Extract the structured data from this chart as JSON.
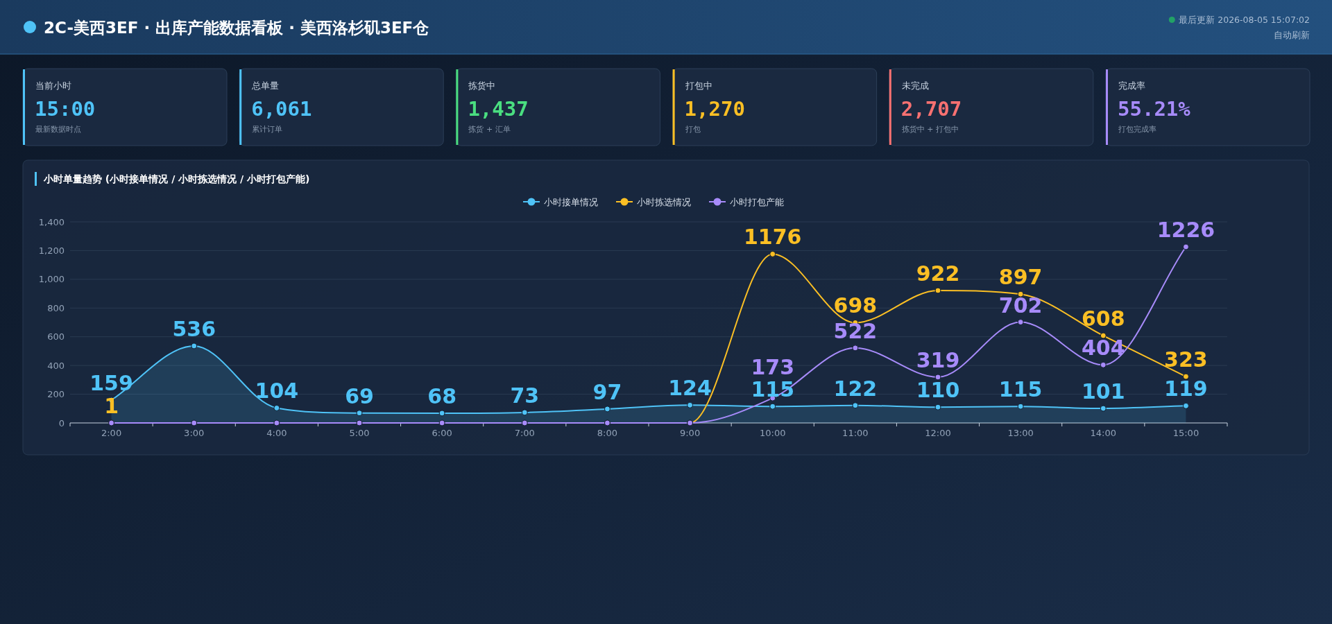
{
  "chart_data": [
    {
      "type": "other",
      "title": "2C-美西3EF · 出库产能数据看板 · 美西洛杉矶3EF仓",
      "annotations": [
        "最后更新 2026-08-05 15:07:02",
        "自动刷新"
      ]
    },
    {
      "type": "other",
      "title": "当前小时",
      "subtitle": "15:00",
      "annotations": [
        "最新数据时点"
      ]
    },
    {
      "type": "other",
      "title": "总单量",
      "subtitle": "6,061",
      "annotations": [
        "累计订单"
      ]
    },
    {
      "type": "other",
      "title": "拣货中",
      "subtitle": "1,437",
      "annotations": [
        "拣货 + 汇单"
      ]
    },
    {
      "type": "other",
      "title": "打包中",
      "subtitle": "1,270",
      "annotations": [
        "打包"
      ]
    },
    {
      "type": "other",
      "title": "未完成",
      "subtitle": "2,707",
      "annotations": [
        "拣货中 + 打包中"
      ]
    },
    {
      "type": "other",
      "title": "完成率",
      "subtitle": "55.21%",
      "annotations": [
        "打包完成率"
      ]
    },
    {
      "type": "line",
      "title": "小时单量趋势 (小时接单情况 / 小时拣选情况 / 小时打包产能)",
      "categories": [
        "2:00",
        "3:00",
        "4:00",
        "5:00",
        "6:00",
        "7:00",
        "8:00",
        "9:00",
        "10:00",
        "11:00",
        "12:00",
        "13:00",
        "14:00",
        "15:00"
      ],
      "ylim": [
        0,
        1400
      ],
      "yticks": [
        0,
        {
          "value": 200,
          "label": "200"
        },
        {
          "value": 400,
          "label": "400"
        },
        {
          "value": 600,
          "label": "600"
        },
        {
          "value": 800,
          "label": "800"
        },
        {
          "value": 1000,
          "label": "1,000"
        },
        {
          "value": 1200,
          "label": "1,200"
        },
        {
          "value": 1400,
          "label": "1,400"
        }
      ],
      "grid": "y",
      "legend": "top",
      "marker": "circle",
      "line_style": "solid",
      "series": [
        {
          "name": "小时接单情况",
          "type": "area",
          "color": "#4fc3f7",
          "values": [
            159,
            536,
            104,
            69,
            68,
            73,
            97,
            124,
            115,
            122,
            110,
            115,
            101,
            119
          ],
          "value_labels": [
            "159",
            "536",
            "104",
            "69",
            "68",
            "73",
            "97",
            "124",
            "115",
            "122",
            "110",
            "115",
            "101",
            "119"
          ]
        },
        {
          "name": "小时拣选情况",
          "color": "#fbbf24",
          "values": [
            1,
            null,
            null,
            null,
            null,
            null,
            0,
            0,
            1176,
            698,
            922,
            897,
            608,
            323
          ],
          "value_labels": [
            "1",
            null,
            null,
            null,
            null,
            null,
            null,
            null,
            "1176",
            "698",
            "922",
            "897",
            "608",
            "323"
          ]
        },
        {
          "name": "小时打包产能",
          "color": "#a78bfa",
          "values": [
            0,
            0,
            0,
            0,
            0,
            0,
            0,
            0,
            173,
            522,
            319,
            702,
            404,
            1226
          ],
          "value_labels": [
            null,
            null,
            null,
            null,
            null,
            null,
            null,
            null,
            "173",
            "522",
            "319",
            "702",
            "404",
            "1226"
          ]
        }
      ]
    }
  ]
}
